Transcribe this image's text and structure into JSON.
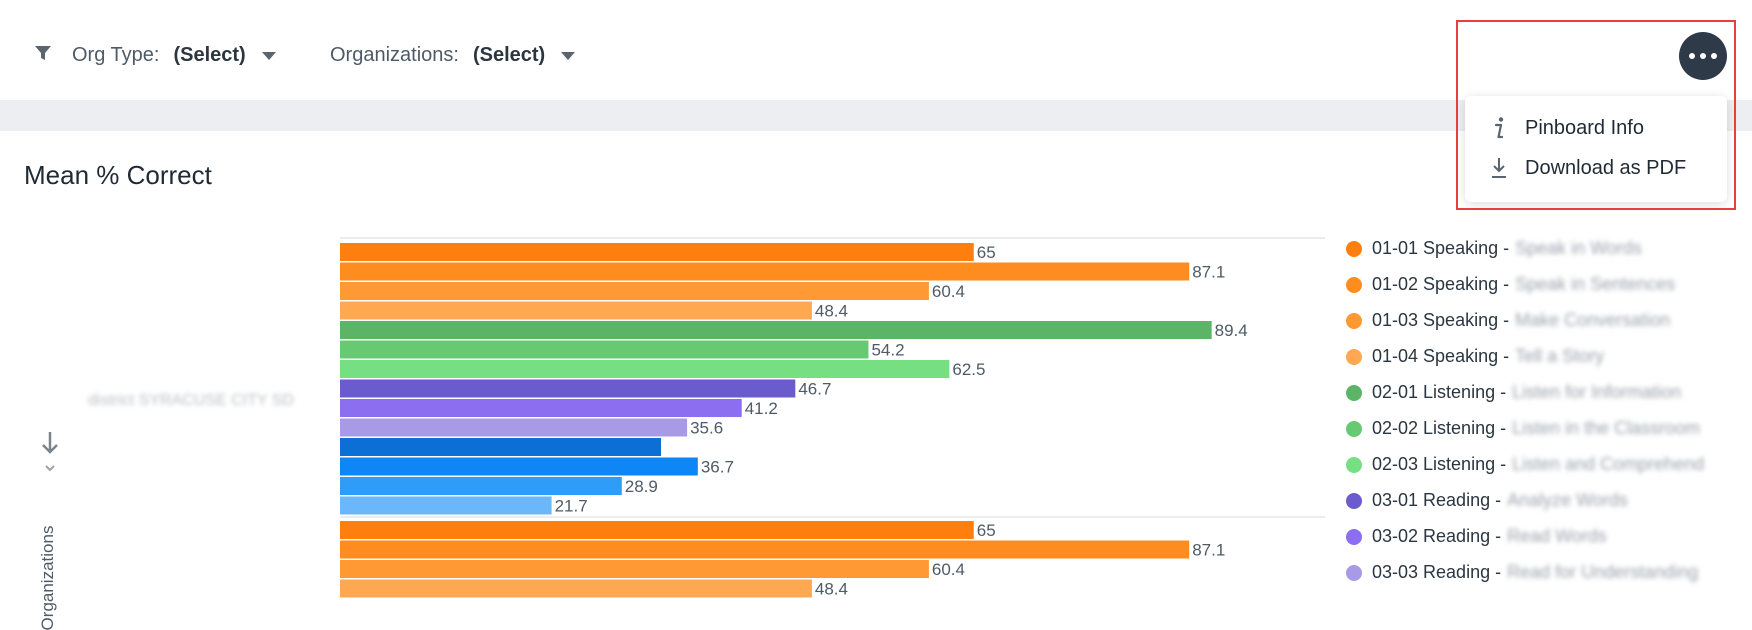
{
  "filters": {
    "org_type": {
      "label": "Org Type:",
      "value": "(Select)"
    },
    "organizations": {
      "label": "Organizations:",
      "value": "(Select)"
    }
  },
  "menu": {
    "more_icon": "more-horizontal-icon",
    "items": [
      {
        "label": "Pinboard Info",
        "icon": "info-icon"
      },
      {
        "label": "Download as PDF",
        "icon": "download-icon"
      }
    ]
  },
  "chart_title": "Mean % Correct",
  "axis_title": "Organizations",
  "chart_data": {
    "type": "bar",
    "orientation": "horizontal",
    "title": "Mean % Correct",
    "ylabel": "Organizations",
    "categories": [
      "district SYRACUSE CITY SD",
      ""
    ],
    "series": [
      {
        "name": "01-01 Speaking",
        "description": "Speak in Words",
        "color": "#ff7f0e",
        "values": [
          65,
          65
        ]
      },
      {
        "name": "01-02 Speaking",
        "description": "Speak in Sentences",
        "color": "#ff8c1f",
        "values": [
          87.1,
          87.1
        ]
      },
      {
        "name": "01-03 Speaking",
        "description": "Make Conversation",
        "color": "#ff9933",
        "values": [
          60.4,
          60.4
        ]
      },
      {
        "name": "01-04 Speaking",
        "description": "Tell a Story",
        "color": "#ffa852",
        "values": [
          48.4,
          48.4
        ]
      },
      {
        "name": "02-01 Listening",
        "description": "Listen for Information",
        "color": "#5cb567",
        "values": [
          89.4,
          null
        ]
      },
      {
        "name": "02-02 Listening",
        "description": "Listen in the Classroom",
        "color": "#68c973",
        "values": [
          54.2,
          null
        ]
      },
      {
        "name": "02-03 Listening",
        "description": "Listen and Comprehend",
        "color": "#76df82",
        "values": [
          62.5,
          null
        ]
      },
      {
        "name": "03-01 Reading",
        "description": "Analyze Words",
        "color": "#6a5ccc",
        "values": [
          46.7,
          null
        ]
      },
      {
        "name": "03-02 Reading",
        "description": "Read Words",
        "color": "#8c6ef0",
        "values": [
          41.2,
          null
        ]
      },
      {
        "name": "03-03 Reading",
        "description": "Read for Understanding",
        "color": "#a89ae6",
        "values": [
          35.6,
          null
        ]
      },
      {
        "name": "",
        "color": "#0b6fd6",
        "values": [
          null,
          null
        ]
      },
      {
        "name": "",
        "color": "#0f86f5",
        "values": [
          36.7,
          null
        ]
      },
      {
        "name": "",
        "color": "#2f9cf8",
        "values": [
          28.9,
          null
        ]
      },
      {
        "name": "",
        "color": "#6ab8fb",
        "values": [
          21.7,
          null
        ]
      }
    ],
    "xlim": [
      0,
      100
    ],
    "legend": "right",
    "grid": false
  }
}
